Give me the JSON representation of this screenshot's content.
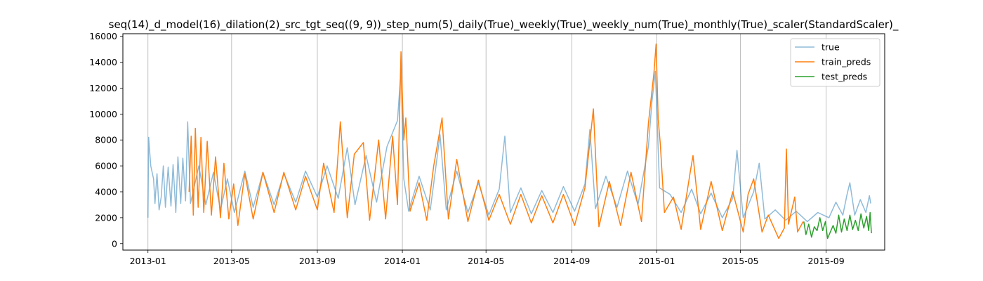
{
  "chart_data": {
    "type": "line",
    "title": "seq(14)_d_model(16)_dilation(2)_src_tgt_seq((9, 9))_step_num(5)_daily(True)_weekly(True)_weekly_num(True)_monthly(True)_scaler(StandardScaler)_",
    "xlabel": "",
    "ylabel": "",
    "x_range": [
      "2012-11-26",
      "2015-11-24"
    ],
    "ylim": [
      -500,
      16200
    ],
    "grid": "x-only",
    "legend_position": "upper right",
    "x_ticks": [
      {
        "date": "2013-01-01",
        "label": "2013-01"
      },
      {
        "date": "2013-05-01",
        "label": "2013-05"
      },
      {
        "date": "2013-09-01",
        "label": "2013-09"
      },
      {
        "date": "2014-01-01",
        "label": "2014-01"
      },
      {
        "date": "2014-05-01",
        "label": "2014-05"
      },
      {
        "date": "2014-09-01",
        "label": "2014-09"
      },
      {
        "date": "2015-01-01",
        "label": "2015-01"
      },
      {
        "date": "2015-05-01",
        "label": "2015-05"
      },
      {
        "date": "2015-09-01",
        "label": "2015-09"
      }
    ],
    "y_ticks": [
      {
        "value": 0,
        "label": "0"
      },
      {
        "value": 2000,
        "label": "2000"
      },
      {
        "value": 4000,
        "label": "4000"
      },
      {
        "value": 6000,
        "label": "6000"
      },
      {
        "value": 8000,
        "label": "8000"
      },
      {
        "value": 10000,
        "label": "10000"
      },
      {
        "value": 12000,
        "label": "12000"
      },
      {
        "value": 14000,
        "label": "14000"
      },
      {
        "value": 16000,
        "label": "16000"
      }
    ],
    "series": [
      {
        "name": "true",
        "color": "#1f77b4",
        "opacity": 0.5,
        "points": [
          [
            "2013-01-01",
            2000
          ],
          [
            "2013-01-02",
            8200
          ],
          [
            "2013-01-05",
            6000
          ],
          [
            "2013-01-09",
            5000
          ],
          [
            "2013-01-11",
            3100
          ],
          [
            "2013-01-14",
            5400
          ],
          [
            "2013-01-17",
            2600
          ],
          [
            "2013-01-20",
            3600
          ],
          [
            "2013-01-23",
            6000
          ],
          [
            "2013-01-26",
            2800
          ],
          [
            "2013-01-30",
            5900
          ],
          [
            "2013-02-03",
            2900
          ],
          [
            "2013-02-06",
            6100
          ],
          [
            "2013-02-10",
            2400
          ],
          [
            "2013-02-13",
            6700
          ],
          [
            "2013-02-17",
            3100
          ],
          [
            "2013-02-20",
            6600
          ],
          [
            "2013-02-24",
            3300
          ],
          [
            "2013-02-27",
            9400
          ],
          [
            "2013-03-03",
            3100
          ],
          [
            "2013-03-15",
            6000
          ],
          [
            "2013-03-25",
            3000
          ],
          [
            "2013-04-05",
            5500
          ],
          [
            "2013-04-15",
            2600
          ],
          [
            "2013-04-25",
            5000
          ],
          [
            "2013-05-05",
            2400
          ],
          [
            "2013-05-20",
            5600
          ],
          [
            "2013-06-01",
            2800
          ],
          [
            "2013-06-15",
            5500
          ],
          [
            "2013-07-01",
            3000
          ],
          [
            "2013-07-15",
            5400
          ],
          [
            "2013-08-01",
            3200
          ],
          [
            "2013-08-15",
            5600
          ],
          [
            "2013-09-01",
            3600
          ],
          [
            "2013-09-15",
            6000
          ],
          [
            "2013-10-01",
            3500
          ],
          [
            "2013-10-14",
            7400
          ],
          [
            "2013-10-25",
            3000
          ],
          [
            "2013-11-10",
            6800
          ],
          [
            "2013-11-25",
            3200
          ],
          [
            "2013-12-10",
            7500
          ],
          [
            "2013-12-25",
            9500
          ],
          [
            "2013-12-30",
            13400
          ],
          [
            "2014-01-03",
            5000
          ],
          [
            "2014-01-10",
            2500
          ],
          [
            "2014-01-25",
            5200
          ],
          [
            "2014-02-10",
            2600
          ],
          [
            "2014-02-24",
            8400
          ],
          [
            "2014-03-05",
            2600
          ],
          [
            "2014-03-20",
            5600
          ],
          [
            "2014-04-05",
            2400
          ],
          [
            "2014-04-20",
            4700
          ],
          [
            "2014-05-05",
            2200
          ],
          [
            "2014-05-20",
            4200
          ],
          [
            "2014-05-28",
            8300
          ],
          [
            "2014-06-05",
            2400
          ],
          [
            "2014-06-20",
            4300
          ],
          [
            "2014-07-05",
            2300
          ],
          [
            "2014-07-20",
            4100
          ],
          [
            "2014-08-05",
            2400
          ],
          [
            "2014-08-20",
            4400
          ],
          [
            "2014-09-05",
            2500
          ],
          [
            "2014-09-20",
            4600
          ],
          [
            "2014-09-27",
            8800
          ],
          [
            "2014-10-05",
            2700
          ],
          [
            "2014-10-20",
            5200
          ],
          [
            "2014-11-05",
            2800
          ],
          [
            "2014-11-20",
            5600
          ],
          [
            "2014-12-05",
            3000
          ],
          [
            "2014-12-20",
            7500
          ],
          [
            "2014-12-25",
            10900
          ],
          [
            "2014-12-30",
            13300
          ],
          [
            "2015-01-05",
            4300
          ],
          [
            "2015-01-20",
            3800
          ],
          [
            "2015-02-05",
            2400
          ],
          [
            "2015-02-20",
            4200
          ],
          [
            "2015-03-05",
            2300
          ],
          [
            "2015-03-20",
            3900
          ],
          [
            "2015-04-05",
            2000
          ],
          [
            "2015-04-20",
            3500
          ],
          [
            "2015-04-26",
            7200
          ],
          [
            "2015-05-05",
            2000
          ],
          [
            "2015-05-20",
            4000
          ],
          [
            "2015-05-28",
            6200
          ],
          [
            "2015-06-05",
            1900
          ],
          [
            "2015-06-20",
            2600
          ],
          [
            "2015-07-05",
            1800
          ],
          [
            "2015-07-20",
            2500
          ],
          [
            "2015-08-05",
            1700
          ],
          [
            "2015-08-20",
            2400
          ],
          [
            "2015-09-05",
            2000
          ],
          [
            "2015-09-15",
            3200
          ],
          [
            "2015-09-25",
            2200
          ],
          [
            "2015-10-01",
            3800
          ],
          [
            "2015-10-05",
            4700
          ],
          [
            "2015-10-12",
            2200
          ],
          [
            "2015-10-20",
            3400
          ],
          [
            "2015-10-28",
            2400
          ],
          [
            "2015-11-02",
            3700
          ],
          [
            "2015-11-04",
            3100
          ]
        ]
      },
      {
        "name": "train_preds",
        "color": "#ff7f0e",
        "opacity": 1,
        "points": [
          [
            "2013-03-01",
            4000
          ],
          [
            "2013-03-04",
            8300
          ],
          [
            "2013-03-07",
            2200
          ],
          [
            "2013-03-10",
            8900
          ],
          [
            "2013-03-14",
            2800
          ],
          [
            "2013-03-18",
            8200
          ],
          [
            "2013-03-22",
            2400
          ],
          [
            "2013-03-27",
            7900
          ],
          [
            "2013-04-02",
            2200
          ],
          [
            "2013-04-08",
            6700
          ],
          [
            "2013-04-15",
            2000
          ],
          [
            "2013-04-20",
            6200
          ],
          [
            "2013-04-27",
            1900
          ],
          [
            "2013-05-04",
            4600
          ],
          [
            "2013-05-10",
            1400
          ],
          [
            "2013-05-20",
            5400
          ],
          [
            "2013-06-01",
            1900
          ],
          [
            "2013-06-15",
            5500
          ],
          [
            "2013-07-01",
            2400
          ],
          [
            "2013-07-15",
            5500
          ],
          [
            "2013-08-01",
            2600
          ],
          [
            "2013-08-15",
            5200
          ],
          [
            "2013-09-01",
            2600
          ],
          [
            "2013-09-10",
            6200
          ],
          [
            "2013-09-25",
            2400
          ],
          [
            "2013-10-04",
            9400
          ],
          [
            "2013-10-14",
            2000
          ],
          [
            "2013-10-24",
            6900
          ],
          [
            "2013-11-06",
            7800
          ],
          [
            "2013-11-15",
            1800
          ],
          [
            "2013-11-28",
            8000
          ],
          [
            "2013-12-08",
            1900
          ],
          [
            "2013-12-18",
            8300
          ],
          [
            "2013-12-25",
            3000
          ],
          [
            "2013-12-30",
            14800
          ],
          [
            "2014-01-03",
            8000
          ],
          [
            "2014-01-06",
            9700
          ],
          [
            "2014-01-12",
            2500
          ],
          [
            "2014-01-25",
            4700
          ],
          [
            "2014-02-05",
            1800
          ],
          [
            "2014-02-15",
            6000
          ],
          [
            "2014-02-27",
            9700
          ],
          [
            "2014-03-08",
            1900
          ],
          [
            "2014-03-20",
            6500
          ],
          [
            "2014-04-05",
            1700
          ],
          [
            "2014-04-20",
            4900
          ],
          [
            "2014-05-05",
            1800
          ],
          [
            "2014-05-20",
            3800
          ],
          [
            "2014-06-05",
            1500
          ],
          [
            "2014-06-20",
            3800
          ],
          [
            "2014-07-05",
            1600
          ],
          [
            "2014-07-20",
            3700
          ],
          [
            "2014-08-05",
            1600
          ],
          [
            "2014-08-20",
            3800
          ],
          [
            "2014-09-05",
            1400
          ],
          [
            "2014-09-20",
            4300
          ],
          [
            "2014-10-02",
            10400
          ],
          [
            "2014-10-10",
            1300
          ],
          [
            "2014-10-25",
            4800
          ],
          [
            "2014-11-10",
            1400
          ],
          [
            "2014-11-25",
            5500
          ],
          [
            "2014-12-10",
            1700
          ],
          [
            "2014-12-20",
            9300
          ],
          [
            "2014-12-28",
            13200
          ],
          [
            "2014-12-31",
            15400
          ],
          [
            "2015-01-03",
            9600
          ],
          [
            "2015-01-06",
            7700
          ],
          [
            "2015-01-12",
            2400
          ],
          [
            "2015-01-25",
            3600
          ],
          [
            "2015-02-05",
            1100
          ],
          [
            "2015-02-18",
            5500
          ],
          [
            "2015-02-22",
            6800
          ],
          [
            "2015-03-05",
            1100
          ],
          [
            "2015-03-20",
            4800
          ],
          [
            "2015-04-05",
            1000
          ],
          [
            "2015-04-20",
            4000
          ],
          [
            "2015-05-05",
            900
          ],
          [
            "2015-05-12",
            3800
          ],
          [
            "2015-05-20",
            5000
          ],
          [
            "2015-06-01",
            900
          ],
          [
            "2015-06-10",
            2200
          ],
          [
            "2015-06-25",
            400
          ],
          [
            "2015-07-03",
            1200
          ],
          [
            "2015-07-06",
            7300
          ],
          [
            "2015-07-09",
            1500
          ],
          [
            "2015-07-18",
            3600
          ],
          [
            "2015-07-22",
            900
          ],
          [
            "2015-07-30",
            1700
          ]
        ]
      },
      {
        "name": "test_preds",
        "color": "#2ca02c",
        "opacity": 1,
        "points": [
          [
            "2015-07-31",
            1700
          ],
          [
            "2015-08-03",
            700
          ],
          [
            "2015-08-07",
            1500
          ],
          [
            "2015-08-11",
            500
          ],
          [
            "2015-08-15",
            1300
          ],
          [
            "2015-08-19",
            1000
          ],
          [
            "2015-08-23",
            2000
          ],
          [
            "2015-08-27",
            1000
          ],
          [
            "2015-08-31",
            1700
          ],
          [
            "2015-09-03",
            400
          ],
          [
            "2015-09-07",
            900
          ],
          [
            "2015-09-11",
            1400
          ],
          [
            "2015-09-15",
            800
          ],
          [
            "2015-09-19",
            2200
          ],
          [
            "2015-09-23",
            900
          ],
          [
            "2015-09-27",
            1900
          ],
          [
            "2015-10-01",
            1000
          ],
          [
            "2015-10-05",
            2200
          ],
          [
            "2015-10-09",
            1100
          ],
          [
            "2015-10-13",
            1800
          ],
          [
            "2015-10-17",
            1000
          ],
          [
            "2015-10-21",
            2300
          ],
          [
            "2015-10-25",
            1200
          ],
          [
            "2015-10-29",
            2100
          ],
          [
            "2015-11-01",
            1000
          ],
          [
            "2015-11-03",
            2400
          ],
          [
            "2015-11-05",
            800
          ]
        ]
      }
    ]
  }
}
